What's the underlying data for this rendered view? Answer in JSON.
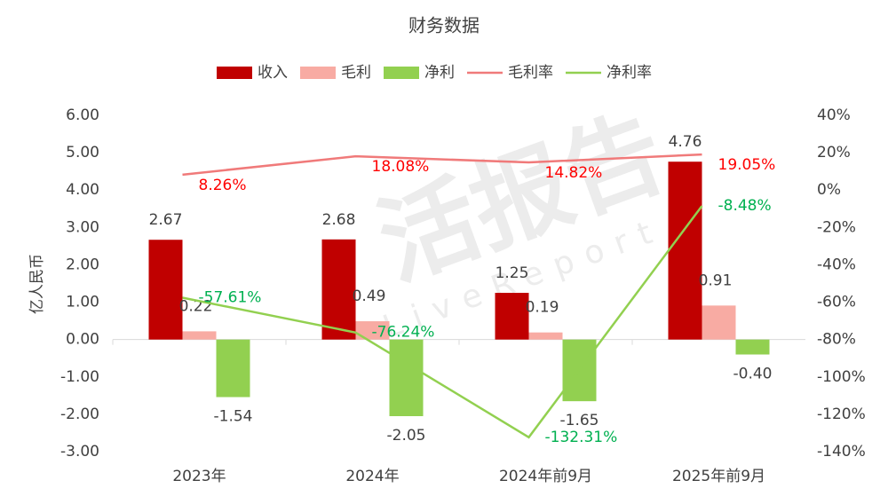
{
  "chart_data": {
    "type": "bar_line",
    "title": "财务数据",
    "y_label": "亿人民币",
    "watermark": [
      "活报告",
      "LiveReport"
    ],
    "categories": [
      "2023年",
      "2024年",
      "2024年前9月",
      "2025年前9月"
    ],
    "series": [
      {
        "name": "收入",
        "type": "bar",
        "color": "#c00000",
        "values": [
          2.67,
          2.68,
          1.25,
          4.76
        ],
        "value_labels": [
          "2.67",
          "2.68",
          "1.25",
          "4.76"
        ]
      },
      {
        "name": "毛利",
        "type": "bar",
        "color": "#f8aba3",
        "values": [
          0.22,
          0.49,
          0.19,
          0.91
        ],
        "value_labels": [
          "0.22",
          "0.49",
          "0.19",
          "0.91"
        ]
      },
      {
        "name": "净利",
        "type": "bar",
        "color": "#92d050",
        "values": [
          -1.54,
          -2.05,
          -1.65,
          -0.4
        ],
        "value_labels": [
          "-1.54",
          "-2.05",
          "-1.65",
          "-0.40"
        ]
      },
      {
        "name": "毛利率",
        "type": "line",
        "axis": "y2",
        "color": "#f07a7a",
        "label_color": "#ff0000",
        "values": [
          8.26,
          18.08,
          14.82,
          19.05
        ],
        "value_labels": [
          "8.26%",
          "18.08%",
          "14.82%",
          "19.05%"
        ]
      },
      {
        "name": "净利率",
        "type": "line",
        "axis": "y2",
        "color": "#92d050",
        "label_color": "#00b050",
        "values": [
          -57.61,
          -76.24,
          -132.31,
          -8.48
        ],
        "value_labels": [
          "-57.61%",
          "-76.24%",
          "-132.31%",
          "-8.48%"
        ]
      }
    ],
    "ylim": [
      -3,
      6
    ],
    "yticks": [
      {
        "value": -3,
        "label": "-3.00"
      },
      {
        "value": -2,
        "label": "-2.00"
      },
      {
        "value": -1,
        "label": "-1.00"
      },
      {
        "value": 0,
        "label": "0.00"
      },
      {
        "value": 1,
        "label": "1.00"
      },
      {
        "value": 2,
        "label": "2.00"
      },
      {
        "value": 3,
        "label": "3.00"
      },
      {
        "value": 4,
        "label": "4.00"
      },
      {
        "value": 5,
        "label": "5.00"
      },
      {
        "value": 6,
        "label": "6.00"
      }
    ],
    "y2lim": [
      -140,
      40
    ],
    "y2ticks": [
      {
        "value": -140,
        "label": "-140%"
      },
      {
        "value": -120,
        "label": "-120%"
      },
      {
        "value": -100,
        "label": "-100%"
      },
      {
        "value": -80,
        "label": "-80%"
      },
      {
        "value": -60,
        "label": "-60%"
      },
      {
        "value": -40,
        "label": "-40%"
      },
      {
        "value": -20,
        "label": "-20%"
      },
      {
        "value": 0,
        "label": "0%"
      },
      {
        "value": 20,
        "label": "20%"
      },
      {
        "value": 40,
        "label": "40%"
      }
    ],
    "grid": false,
    "legend": "top"
  }
}
